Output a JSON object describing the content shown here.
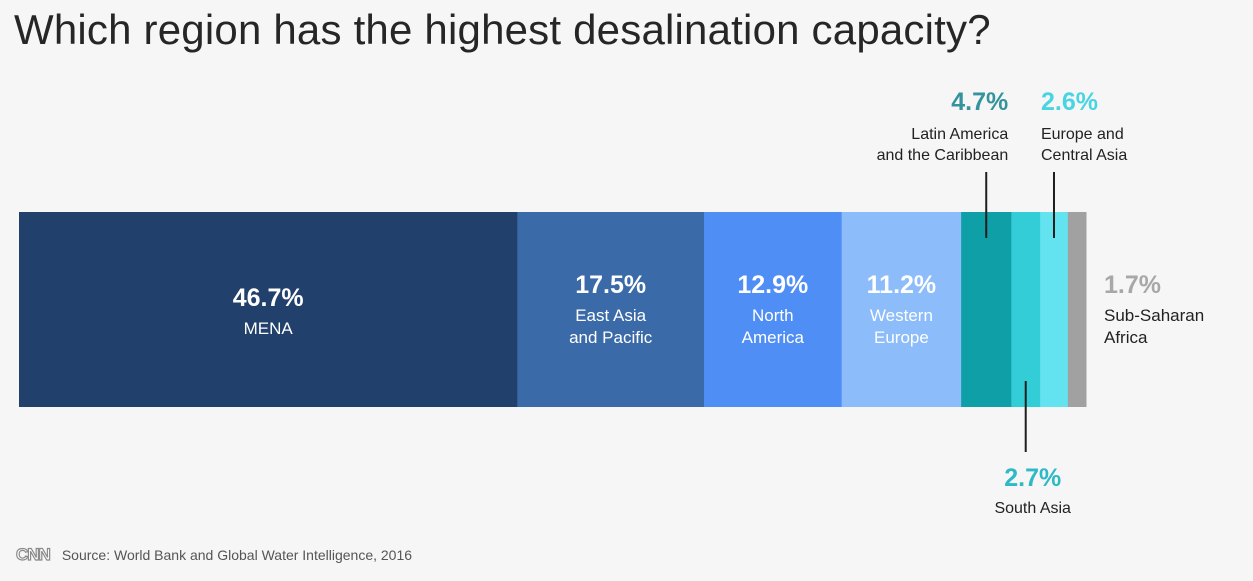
{
  "title": "Which region has the highest desalination capacity?",
  "footer": {
    "logo": "CNN",
    "source": "Source: World Bank and Global Water Intelligence, 2016"
  },
  "chart_data": {
    "type": "bar",
    "orientation": "horizontal-stacked",
    "title": "Which region has the highest desalination capacity?",
    "unit": "%",
    "categories": [
      "MENA",
      "East Asia and Pacific",
      "North America",
      "Western Europe",
      "Latin America and the Caribbean",
      "South Asia",
      "Europe and Central Asia",
      "Sub-Saharan Africa"
    ],
    "values": [
      46.7,
      17.5,
      12.9,
      11.2,
      4.7,
      2.7,
      2.6,
      1.7
    ],
    "value_labels": [
      "46.7%",
      "17.5%",
      "12.9%",
      "11.2%",
      "4.7%",
      "2.7%",
      "2.6%",
      "1.7%"
    ],
    "label_lines": [
      [
        "MENA"
      ],
      [
        "East Asia",
        "and Pacific"
      ],
      [
        "North",
        "America"
      ],
      [
        "Western",
        "Europe"
      ],
      [
        "Latin America",
        "and the Caribbean"
      ],
      [
        "South Asia"
      ],
      [
        "Europe and",
        "Central Asia"
      ],
      [
        "Sub-Saharan",
        "Africa"
      ]
    ],
    "colors": [
      "#21406b",
      "#3a6aa8",
      "#4f8ef5",
      "#8cbcf9",
      "#0f9fa7",
      "#33cdd7",
      "#63e3ef",
      "#a1a1a1"
    ],
    "value_colors": [
      "#ffffff",
      "#ffffff",
      "#ffffff",
      "#ffffff",
      "#34939c",
      "#2fb9c6",
      "#48d4e2",
      "#a8a8a8"
    ],
    "label_colors": [
      "#ffffff",
      "#ffffff",
      "#ffffff",
      "#ffffff",
      "#222222",
      "#222222",
      "#222222",
      "#222222"
    ],
    "label_placement": [
      "inside",
      "inside",
      "inside",
      "inside",
      "above",
      "below",
      "above",
      "right"
    ],
    "xlim": [
      0,
      100
    ]
  }
}
